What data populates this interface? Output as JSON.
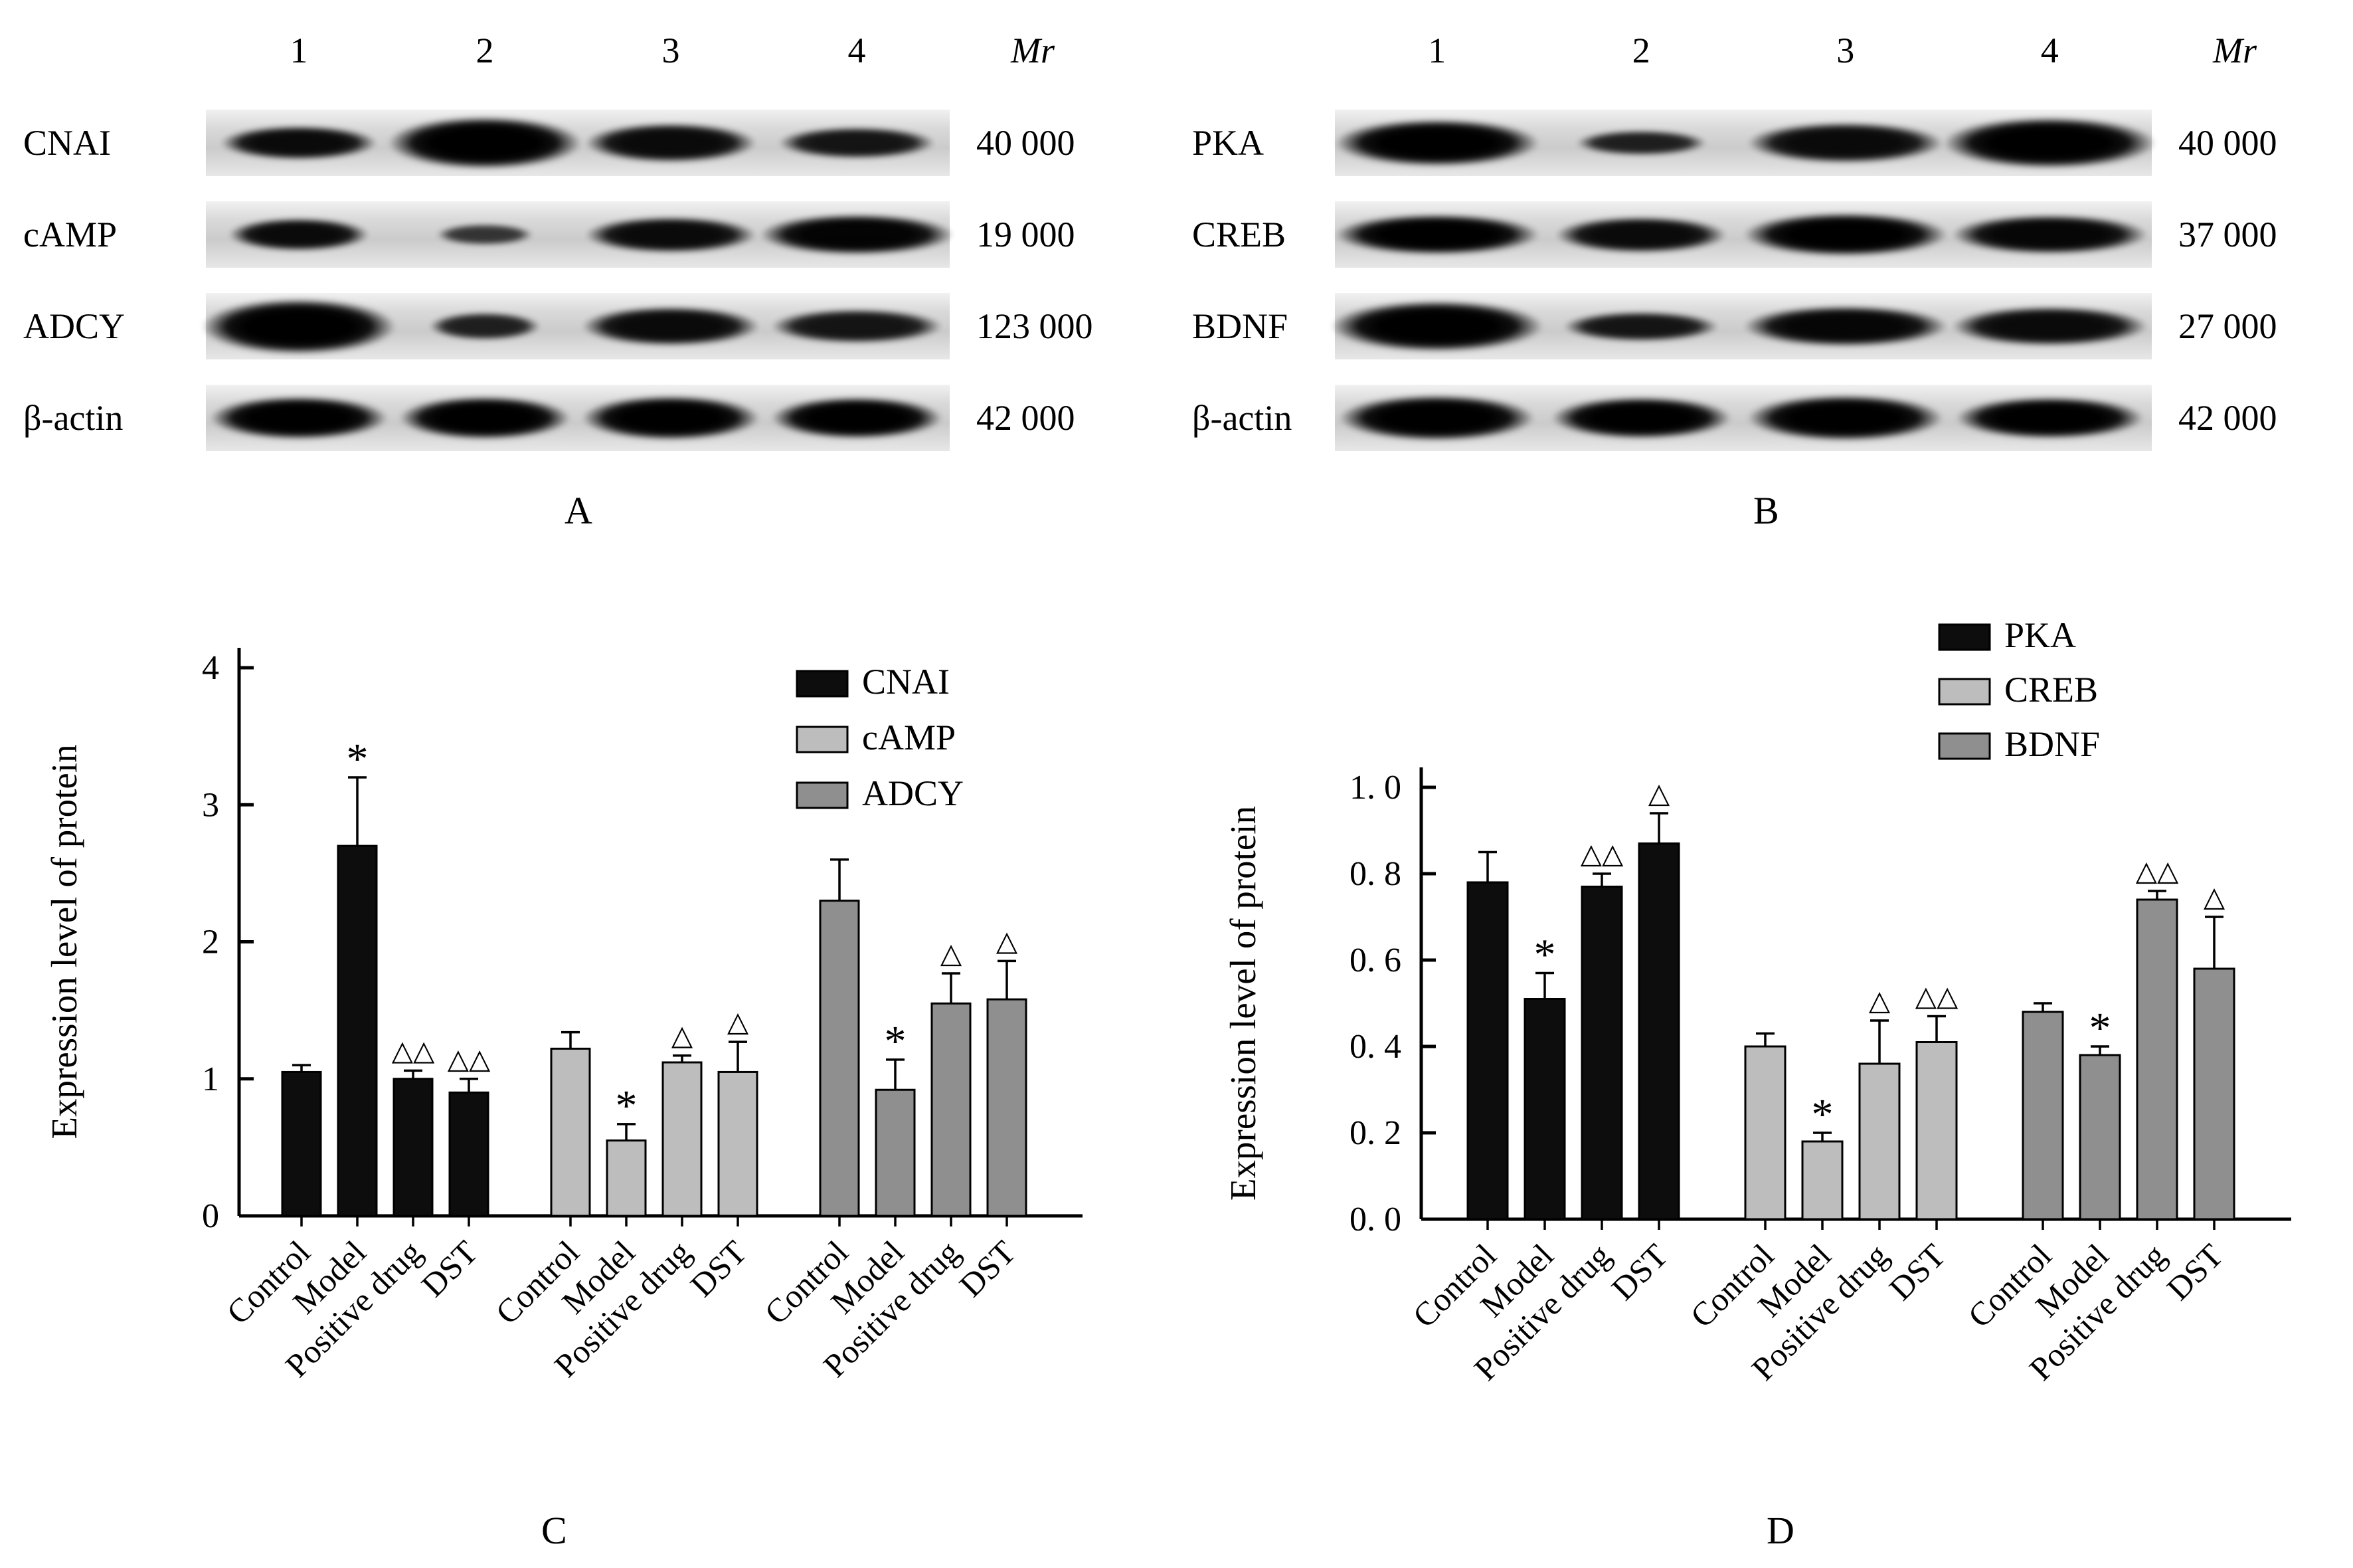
{
  "blot_panels": {
    "A": {
      "caption": "A",
      "lane_numbers": [
        "1",
        "2",
        "3",
        "4"
      ],
      "mr_header": "Mr",
      "rows": [
        {
          "protein": "CNAI",
          "mr": "40 000",
          "bands": [
            {
              "w": 0.21,
              "h": 0.52,
              "o": 0.95
            },
            {
              "w": 0.26,
              "h": 0.8,
              "o": 1
            },
            {
              "w": 0.23,
              "h": 0.6,
              "o": 0.95
            },
            {
              "w": 0.21,
              "h": 0.48,
              "o": 0.9
            }
          ]
        },
        {
          "protein": "cAMP",
          "mr": "19 000",
          "bands": [
            {
              "w": 0.19,
              "h": 0.5,
              "o": 0.95
            },
            {
              "w": 0.13,
              "h": 0.32,
              "o": 0.75
            },
            {
              "w": 0.23,
              "h": 0.55,
              "o": 0.95
            },
            {
              "w": 0.26,
              "h": 0.62,
              "o": 0.98
            }
          ]
        },
        {
          "protein": "ADCY",
          "mr": "123 000",
          "bands": [
            {
              "w": 0.26,
              "h": 0.85,
              "o": 1
            },
            {
              "w": 0.15,
              "h": 0.42,
              "o": 0.85
            },
            {
              "w": 0.24,
              "h": 0.6,
              "o": 0.95
            },
            {
              "w": 0.23,
              "h": 0.52,
              "o": 0.9
            }
          ]
        },
        {
          "protein": "β-actin",
          "mr": "42 000",
          "bands": [
            {
              "w": 0.24,
              "h": 0.66,
              "o": 1
            },
            {
              "w": 0.23,
              "h": 0.66,
              "o": 1
            },
            {
              "w": 0.24,
              "h": 0.68,
              "o": 1
            },
            {
              "w": 0.23,
              "h": 0.64,
              "o": 1
            }
          ]
        }
      ]
    },
    "B": {
      "caption": "B",
      "lane_numbers": [
        "1",
        "2",
        "3",
        "4"
      ],
      "mr_header": "Mr",
      "rows": [
        {
          "protein": "PKA",
          "mr": "40 000",
          "bands": [
            {
              "w": 0.25,
              "h": 0.72,
              "o": 1
            },
            {
              "w": 0.16,
              "h": 0.38,
              "o": 0.85
            },
            {
              "w": 0.24,
              "h": 0.62,
              "o": 0.95
            },
            {
              "w": 0.26,
              "h": 0.78,
              "o": 1
            }
          ]
        },
        {
          "protein": "CREB",
          "mr": "37 000",
          "bands": [
            {
              "w": 0.25,
              "h": 0.62,
              "o": 1
            },
            {
              "w": 0.21,
              "h": 0.55,
              "o": 0.95
            },
            {
              "w": 0.25,
              "h": 0.66,
              "o": 1
            },
            {
              "w": 0.24,
              "h": 0.6,
              "o": 0.97
            }
          ]
        },
        {
          "protein": "BDNF",
          "mr": "27 000",
          "bands": [
            {
              "w": 0.26,
              "h": 0.78,
              "o": 1
            },
            {
              "w": 0.19,
              "h": 0.45,
              "o": 0.9
            },
            {
              "w": 0.25,
              "h": 0.62,
              "o": 0.97
            },
            {
              "w": 0.24,
              "h": 0.6,
              "o": 0.95
            }
          ]
        },
        {
          "protein": "β-actin",
          "mr": "42 000",
          "bands": [
            {
              "w": 0.24,
              "h": 0.7,
              "o": 1
            },
            {
              "w": 0.22,
              "h": 0.64,
              "o": 1
            },
            {
              "w": 0.24,
              "h": 0.7,
              "o": 1
            },
            {
              "w": 0.23,
              "h": 0.64,
              "o": 1
            }
          ]
        }
      ]
    }
  },
  "chart_data": [
    {
      "type": "bar",
      "panel_caption": "C",
      "ylabel": "Expression level of protein",
      "ylim": [
        0,
        4
      ],
      "yticks": [
        0,
        1,
        2,
        3,
        4
      ],
      "ytick_labels": [
        "0",
        "1",
        "2",
        "3",
        "4"
      ],
      "categories": [
        "Control",
        "Model",
        "Positive drug",
        "DST"
      ],
      "legend_position": "top-right",
      "series": [
        {
          "name": "CNAI",
          "color": "#0d0d0d",
          "values": [
            1.05,
            2.7,
            1.0,
            0.9
          ],
          "errors": [
            0.05,
            0.5,
            0.06,
            0.1
          ],
          "annotations": [
            "",
            "*",
            "△△",
            "△△"
          ]
        },
        {
          "name": "cAMP",
          "color": "#bdbdbd",
          "values": [
            1.22,
            0.55,
            1.12,
            1.05
          ],
          "errors": [
            0.12,
            0.12,
            0.05,
            0.22
          ],
          "annotations": [
            "",
            "*",
            "△",
            "△"
          ]
        },
        {
          "name": "ADCY",
          "color": "#8f8f8f",
          "values": [
            2.3,
            0.92,
            1.55,
            1.58
          ],
          "errors": [
            0.3,
            0.22,
            0.22,
            0.28
          ],
          "annotations": [
            "",
            "*",
            "△",
            "△"
          ]
        }
      ]
    },
    {
      "type": "bar",
      "panel_caption": "D",
      "ylabel": "Expression level of protein",
      "ylim": [
        0,
        1.0
      ],
      "yticks": [
        0,
        0.2,
        0.4,
        0.6,
        0.8,
        1.0
      ],
      "ytick_labels": [
        "0. 0",
        "0. 2",
        "0. 4",
        "0. 6",
        "0. 8",
        "1. 0"
      ],
      "categories": [
        "Control",
        "Model",
        "Positive drug",
        "DST"
      ],
      "legend_position": "top-right",
      "series": [
        {
          "name": "PKA",
          "color": "#0d0d0d",
          "values": [
            0.78,
            0.51,
            0.77,
            0.87
          ],
          "errors": [
            0.07,
            0.06,
            0.03,
            0.07
          ],
          "annotations": [
            "",
            "*",
            "△△",
            "△"
          ]
        },
        {
          "name": "CREB",
          "color": "#bdbdbd",
          "values": [
            0.4,
            0.18,
            0.36,
            0.41
          ],
          "errors": [
            0.03,
            0.02,
            0.1,
            0.06
          ],
          "annotations": [
            "",
            "*",
            "△",
            "△△"
          ]
        },
        {
          "name": "BDNF",
          "color": "#8f8f8f",
          "values": [
            0.48,
            0.38,
            0.74,
            0.58
          ],
          "errors": [
            0.02,
            0.02,
            0.02,
            0.12
          ],
          "annotations": [
            "",
            "*",
            "△△",
            "△"
          ]
        }
      ]
    }
  ]
}
